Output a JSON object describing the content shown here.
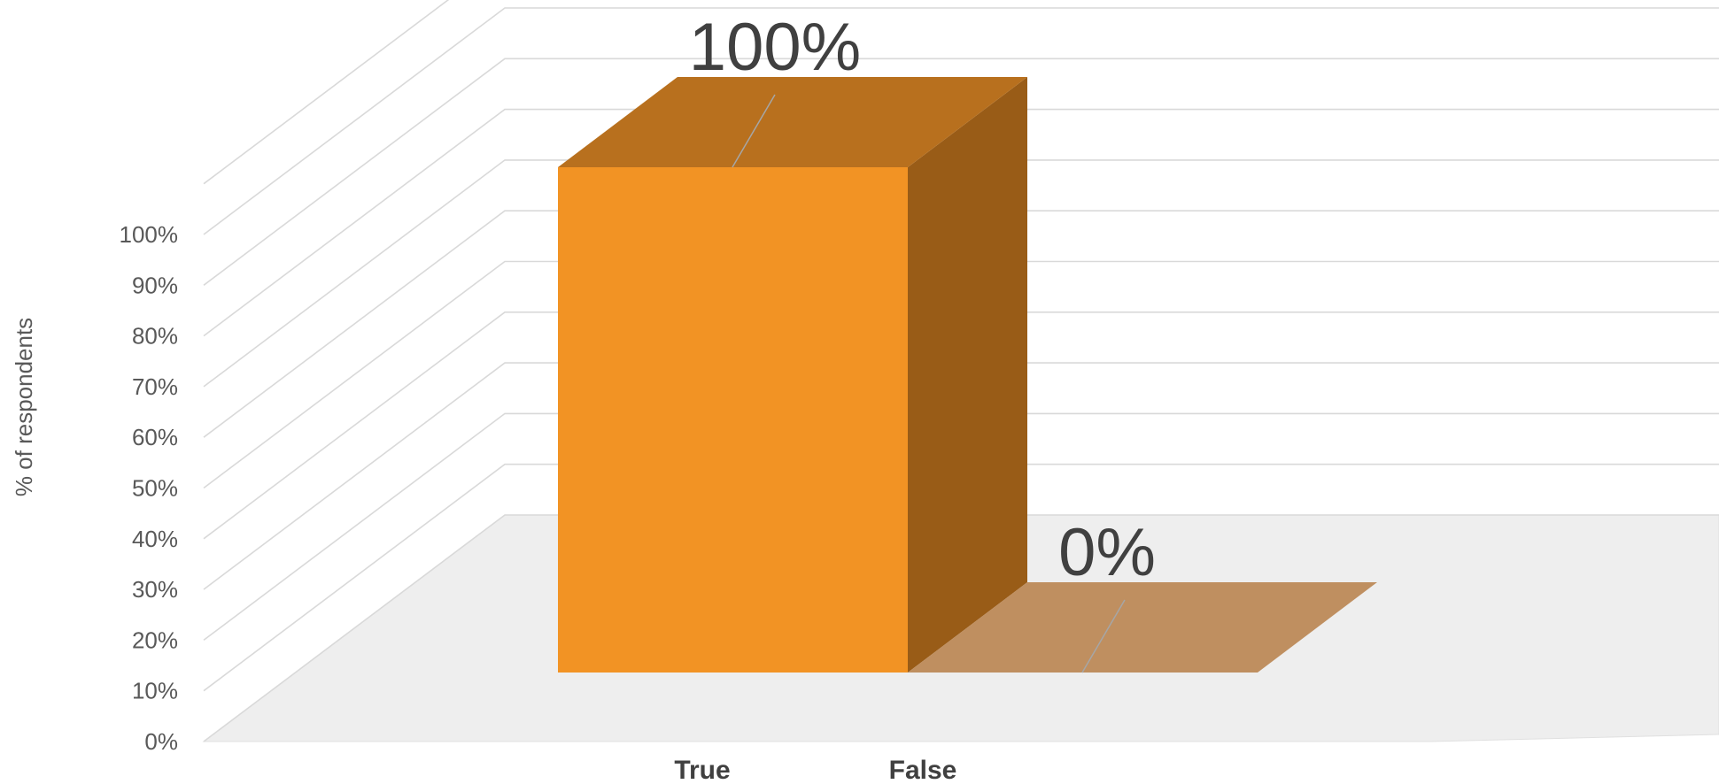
{
  "chart_data": {
    "type": "bar",
    "style": "3d-column",
    "categories": [
      "True",
      "False"
    ],
    "values": [
      100,
      0
    ],
    "data_labels": [
      "100%",
      "0%"
    ],
    "ylabel": "% of respondents",
    "ylim": [
      0,
      100
    ],
    "ytick_labels": [
      "0%",
      "10%",
      "20%",
      "30%",
      "40%",
      "50%",
      "60%",
      "70%",
      "80%",
      "90%",
      "100%"
    ],
    "grid": true,
    "legend": "none",
    "colors": {
      "bar_front": "#F29324",
      "bar_top": "#B8701E",
      "bar_side": "#995C17",
      "zero_bar_top": "#BF8F60",
      "floor": "#EEEEEE",
      "gridline": "#D9D9D9"
    }
  }
}
